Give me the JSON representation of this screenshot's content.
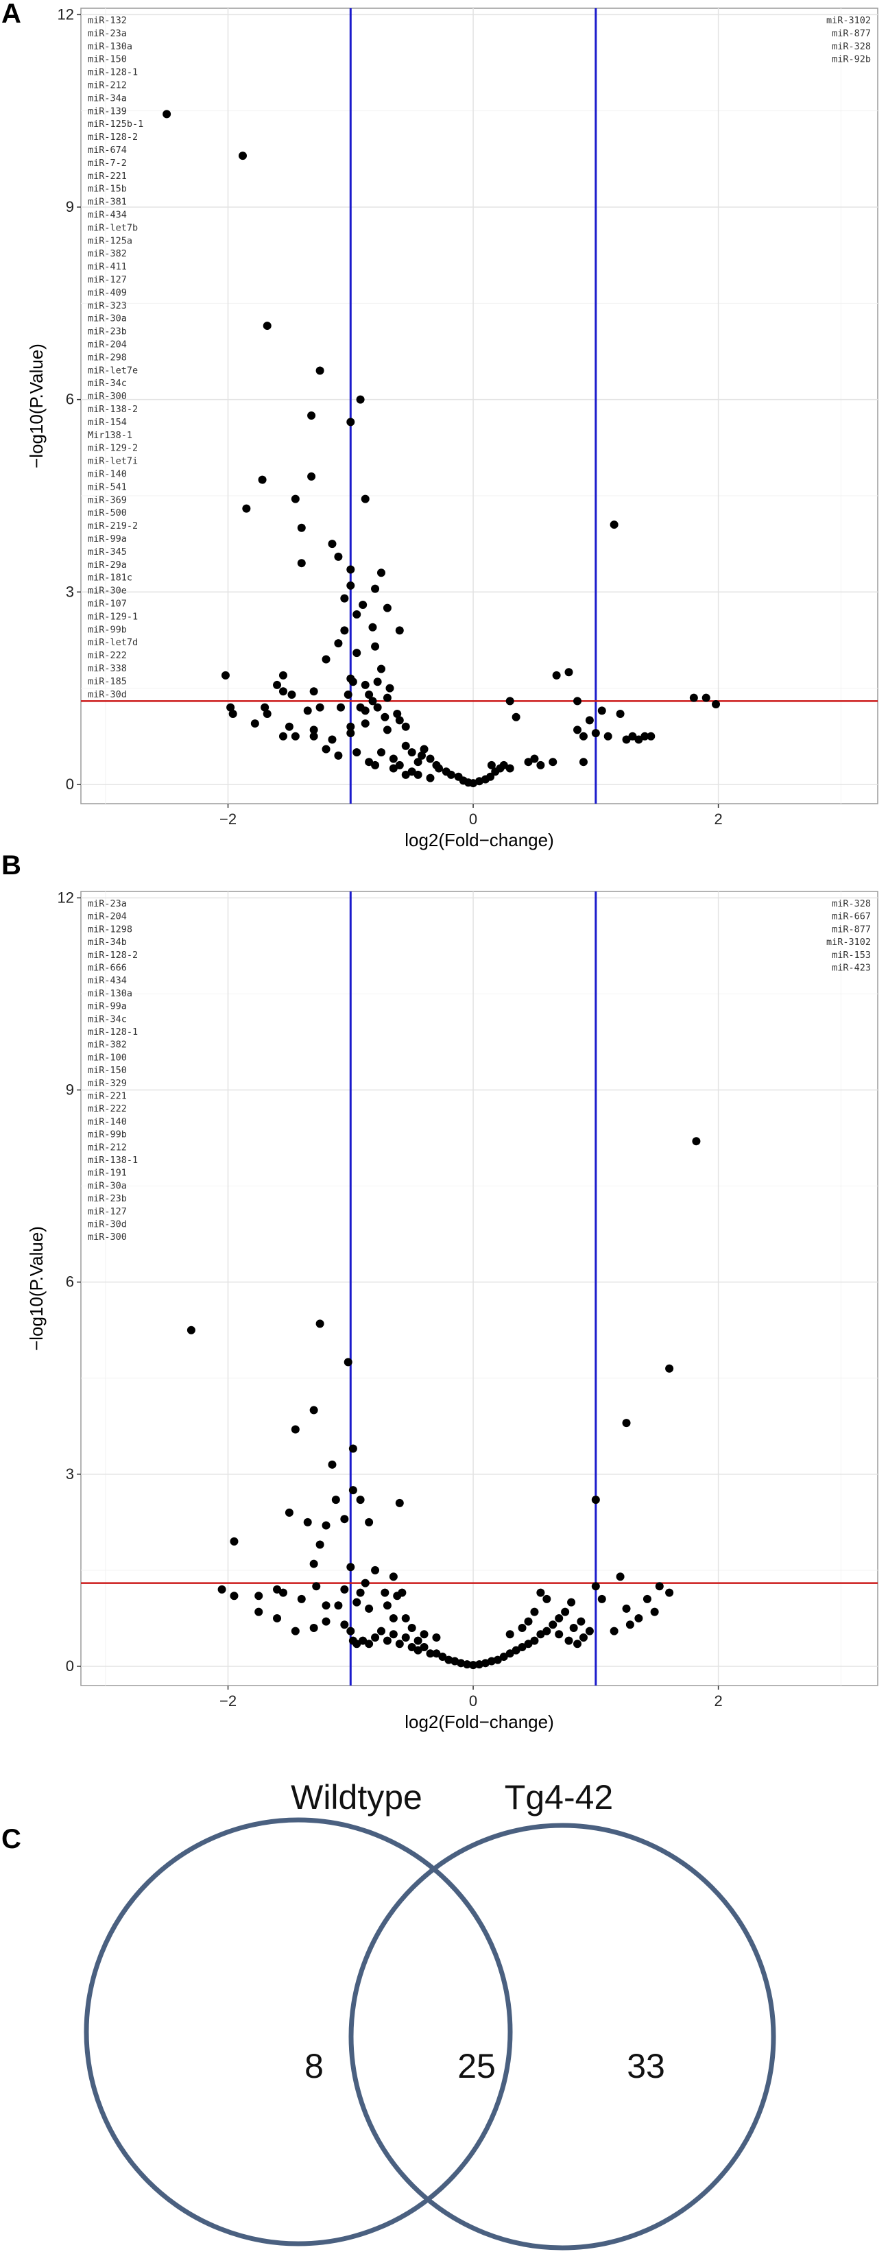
{
  "panels": {
    "a": "A",
    "b": "B",
    "c": "C"
  },
  "colors": {
    "panel_bg": "#ffffff",
    "panel_border": "#9a9a9a",
    "grid_major": "#e3e3e3",
    "grid_minor": "#f2f2f2",
    "fold_line": "#1a1acc",
    "pvalue_line": "#cc1a1a",
    "point": "#000000",
    "venn_circle": "#4a6080"
  },
  "chart_data": [
    {
      "type": "scatter",
      "panel": "A",
      "xlabel": "log2(Fold−change)",
      "ylabel": "−log10(P.Value)",
      "xlim": [
        -3.2,
        3.3
      ],
      "ylim": [
        -0.3,
        12.1
      ],
      "xticks": [
        -2,
        0,
        2
      ],
      "xtick_labels": [
        "−2",
        "0",
        "2"
      ],
      "yticks": [
        0,
        3,
        6,
        9,
        12
      ],
      "ytick_labels": [
        "0",
        "3",
        "6",
        "9",
        "12"
      ],
      "vlines": [
        -1,
        1
      ],
      "hline": 1.3,
      "down_mirs": [
        "miR-132",
        "miR-23a",
        "miR-130a",
        "miR-150",
        "miR-128-1",
        "miR-212",
        "miR-34a",
        "miR-139",
        "miR-125b-1",
        "miR-128-2",
        "miR-674",
        "miR-7-2",
        "miR-221",
        "miR-15b",
        "miR-381",
        "miR-434",
        "miR-let7b",
        "miR-125a",
        "miR-382",
        "miR-411",
        "miR-127",
        "miR-409",
        "miR-323",
        "miR-30a",
        "miR-23b",
        "miR-204",
        "miR-298",
        "miR-let7e",
        "miR-34c",
        "miR-300",
        "miR-138-2",
        "miR-154",
        "Mir138-1",
        "miR-129-2",
        "miR-let7i",
        "miR-140",
        "miR-541",
        "miR-369",
        "miR-500",
        "miR-219-2",
        "miR-99a",
        "miR-345",
        "miR-29a",
        "miR-181c",
        "miR-30e",
        "miR-107",
        "miR-129-1",
        "miR-99b",
        "miR-let7d",
        "miR-222",
        "miR-338",
        "miR-185",
        "miR-30d"
      ],
      "up_mirs": [
        "miR-3102",
        "miR-877",
        "miR-328",
        "miR-92b"
      ],
      "points": [
        [
          -2.5,
          10.45
        ],
        [
          -1.88,
          9.8
        ],
        [
          -1.68,
          7.15
        ],
        [
          -1.25,
          6.45
        ],
        [
          -0.92,
          6.0
        ],
        [
          -1.32,
          5.75
        ],
        [
          -1.0,
          5.65
        ],
        [
          -1.72,
          4.75
        ],
        [
          -1.32,
          4.8
        ],
        [
          -1.85,
          4.3
        ],
        [
          -1.45,
          4.45
        ],
        [
          -0.88,
          4.45
        ],
        [
          -1.4,
          4.0
        ],
        [
          -1.15,
          3.75
        ],
        [
          -1.1,
          3.55
        ],
        [
          -1.4,
          3.45
        ],
        [
          -1.0,
          3.35
        ],
        [
          -0.75,
          3.3
        ],
        [
          -1.0,
          3.1
        ],
        [
          -0.8,
          3.05
        ],
        [
          -1.05,
          2.9
        ],
        [
          -0.9,
          2.8
        ],
        [
          -0.7,
          2.75
        ],
        [
          -0.95,
          2.65
        ],
        [
          -1.05,
          2.4
        ],
        [
          -0.82,
          2.45
        ],
        [
          -0.6,
          2.4
        ],
        [
          -1.1,
          2.2
        ],
        [
          -0.8,
          2.15
        ],
        [
          -0.95,
          2.05
        ],
        [
          -1.2,
          1.95
        ],
        [
          -0.75,
          1.8
        ],
        [
          -1.55,
          1.7
        ],
        [
          -1.0,
          1.65
        ],
        [
          -0.88,
          1.55
        ],
        [
          -0.98,
          1.6
        ],
        [
          -0.78,
          1.6
        ],
        [
          -0.68,
          1.5
        ],
        [
          -1.6,
          1.55
        ],
        [
          -1.55,
          1.45
        ],
        [
          -2.02,
          1.7
        ],
        [
          -1.98,
          1.2
        ],
        [
          -1.96,
          1.1
        ],
        [
          -1.7,
          1.2
        ],
        [
          -1.68,
          1.1
        ],
        [
          -1.48,
          1.4
        ],
        [
          -1.3,
          1.45
        ],
        [
          -1.02,
          1.4
        ],
        [
          -0.85,
          1.4
        ],
        [
          -0.82,
          1.3
        ],
        [
          -0.7,
          1.35
        ],
        [
          -1.25,
          1.2
        ],
        [
          -1.35,
          1.15
        ],
        [
          -1.08,
          1.2
        ],
        [
          -0.92,
          1.2
        ],
        [
          -0.78,
          1.2
        ],
        [
          -0.88,
          1.15
        ],
        [
          -0.62,
          1.1
        ],
        [
          -0.72,
          1.05
        ],
        [
          -0.6,
          1.0
        ],
        [
          -1.78,
          0.95
        ],
        [
          -1.5,
          0.9
        ],
        [
          -1.3,
          0.85
        ],
        [
          -1.45,
          0.75
        ],
        [
          -1.3,
          0.75
        ],
        [
          -1.0,
          0.9
        ],
        [
          -0.88,
          0.95
        ],
        [
          -0.7,
          0.85
        ],
        [
          -0.55,
          0.9
        ],
        [
          -1.0,
          0.8
        ],
        [
          -1.15,
          0.7
        ],
        [
          -1.2,
          0.55
        ],
        [
          -1.1,
          0.45
        ],
        [
          -0.95,
          0.5
        ],
        [
          -0.85,
          0.35
        ],
        [
          -0.75,
          0.5
        ],
        [
          -0.65,
          0.4
        ],
        [
          -0.55,
          0.6
        ],
        [
          -0.5,
          0.5
        ],
        [
          -0.45,
          0.35
        ],
        [
          -0.4,
          0.55
        ],
        [
          -0.35,
          0.4
        ],
        [
          -0.3,
          0.3
        ],
        [
          -0.28,
          0.25
        ],
        [
          -0.22,
          0.2
        ],
        [
          -0.18,
          0.15
        ],
        [
          -0.12,
          0.12
        ],
        [
          -0.08,
          0.06
        ],
        [
          -0.04,
          0.03
        ],
        [
          0.0,
          0.02
        ],
        [
          0.05,
          0.05
        ],
        [
          0.1,
          0.08
        ],
        [
          0.14,
          0.12
        ],
        [
          0.18,
          0.2
        ],
        [
          0.22,
          0.25
        ],
        [
          0.25,
          0.3
        ],
        [
          0.15,
          0.3
        ],
        [
          -0.5,
          0.2
        ],
        [
          -0.6,
          0.3
        ],
        [
          -0.42,
          0.45
        ],
        [
          0.3,
          0.25
        ],
        [
          0.3,
          1.3
        ],
        [
          0.35,
          1.05
        ],
        [
          0.45,
          0.35
        ],
        [
          0.5,
          0.4
        ],
        [
          0.55,
          0.3
        ],
        [
          0.65,
          0.35
        ],
        [
          0.68,
          1.7
        ],
        [
          0.78,
          1.75
        ],
        [
          0.85,
          0.85
        ],
        [
          0.9,
          0.35
        ],
        [
          0.85,
          1.3
        ],
        [
          0.95,
          1.0
        ],
        [
          0.9,
          0.75
        ],
        [
          1.05,
          1.15
        ],
        [
          1.0,
          0.8
        ],
        [
          1.1,
          0.75
        ],
        [
          1.15,
          4.05
        ],
        [
          1.25,
          0.7
        ],
        [
          1.3,
          0.75
        ],
        [
          1.35,
          0.7
        ],
        [
          1.4,
          0.75
        ],
        [
          1.45,
          0.75
        ],
        [
          1.2,
          1.1
        ],
        [
          1.8,
          1.35
        ],
        [
          1.9,
          1.35
        ],
        [
          1.98,
          1.25
        ],
        [
          -0.55,
          0.15
        ],
        [
          -0.45,
          0.15
        ],
        [
          -0.35,
          0.1
        ],
        [
          -0.65,
          0.25
        ],
        [
          -0.8,
          0.3
        ],
        [
          -1.55,
          0.75
        ]
      ]
    },
    {
      "type": "scatter",
      "panel": "B",
      "xlabel": "log2(Fold−change)",
      "ylabel": "−log10(P.Value)",
      "xlim": [
        -3.2,
        3.3
      ],
      "ylim": [
        -0.3,
        12.1
      ],
      "xticks": [
        -2,
        0,
        2
      ],
      "xtick_labels": [
        "−2",
        "0",
        "2"
      ],
      "yticks": [
        0,
        3,
        6,
        9,
        12
      ],
      "ytick_labels": [
        "0",
        "3",
        "6",
        "9",
        "12"
      ],
      "vlines": [
        -1,
        1
      ],
      "hline": 1.3,
      "down_mirs": [
        "miR-23a",
        "miR-204",
        "miR-1298",
        "miR-34b",
        "miR-128-2",
        "miR-666",
        "miR-434",
        "miR-130a",
        "miR-99a",
        "miR-34c",
        "miR-128-1",
        "miR-382",
        "miR-100",
        "miR-150",
        "miR-329",
        "miR-221",
        "miR-222",
        "miR-140",
        "miR-99b",
        "miR-212",
        "miR-138-1",
        "miR-191",
        "miR-30a",
        "miR-23b",
        "miR-127",
        "miR-30d",
        "miR-300"
      ],
      "up_mirs": [
        "miR-328",
        "miR-667",
        "miR-877",
        "miR-3102",
        "miR-153",
        "miR-423"
      ],
      "points": [
        [
          -2.3,
          5.25
        ],
        [
          -1.25,
          5.35
        ],
        [
          -1.02,
          4.75
        ],
        [
          -1.3,
          4.0
        ],
        [
          -1.45,
          3.7
        ],
        [
          -0.98,
          3.4
        ],
        [
          -1.15,
          3.15
        ],
        [
          -0.98,
          2.75
        ],
        [
          -1.12,
          2.6
        ],
        [
          -0.92,
          2.6
        ],
        [
          -0.6,
          2.55
        ],
        [
          -1.5,
          2.4
        ],
        [
          -1.05,
          2.3
        ],
        [
          -1.2,
          2.2
        ],
        [
          -0.85,
          2.25
        ],
        [
          -1.35,
          2.25
        ],
        [
          -1.25,
          1.9
        ],
        [
          -1.95,
          1.95
        ],
        [
          -1.3,
          1.6
        ],
        [
          -1.0,
          1.55
        ],
        [
          -0.8,
          1.5
        ],
        [
          -0.65,
          1.4
        ],
        [
          -0.88,
          1.3
        ],
        [
          -1.28,
          1.25
        ],
        [
          -1.05,
          1.2
        ],
        [
          -0.92,
          1.15
        ],
        [
          -0.72,
          1.15
        ],
        [
          -0.62,
          1.1
        ],
        [
          -0.58,
          1.15
        ],
        [
          -2.05,
          1.2
        ],
        [
          -1.95,
          1.1
        ],
        [
          -1.75,
          1.1
        ],
        [
          -1.6,
          1.2
        ],
        [
          -1.55,
          1.15
        ],
        [
          -1.4,
          1.05
        ],
        [
          -1.2,
          0.95
        ],
        [
          -1.1,
          0.95
        ],
        [
          -0.95,
          1.0
        ],
        [
          -0.85,
          0.9
        ],
        [
          -0.7,
          0.95
        ],
        [
          -1.75,
          0.85
        ],
        [
          -1.6,
          0.75
        ],
        [
          -1.45,
          0.55
        ],
        [
          -1.3,
          0.6
        ],
        [
          -1.2,
          0.7
        ],
        [
          -1.05,
          0.65
        ],
        [
          -1.0,
          0.55
        ],
        [
          -0.98,
          0.4
        ],
        [
          -0.95,
          0.35
        ],
        [
          -0.9,
          0.4
        ],
        [
          -0.85,
          0.35
        ],
        [
          -0.8,
          0.45
        ],
        [
          -0.75,
          0.55
        ],
        [
          -0.7,
          0.4
        ],
        [
          -0.65,
          0.5
        ],
        [
          -0.6,
          0.35
        ],
        [
          -0.55,
          0.45
        ],
        [
          -0.5,
          0.3
        ],
        [
          -0.45,
          0.25
        ],
        [
          -0.4,
          0.3
        ],
        [
          -0.35,
          0.2
        ],
        [
          -0.3,
          0.2
        ],
        [
          -0.25,
          0.15
        ],
        [
          -0.2,
          0.1
        ],
        [
          -0.15,
          0.08
        ],
        [
          -0.1,
          0.05
        ],
        [
          -0.05,
          0.03
        ],
        [
          0.0,
          0.02
        ],
        [
          0.05,
          0.03
        ],
        [
          0.1,
          0.05
        ],
        [
          0.15,
          0.08
        ],
        [
          0.2,
          0.1
        ],
        [
          0.25,
          0.15
        ],
        [
          0.3,
          0.2
        ],
        [
          0.35,
          0.25
        ],
        [
          0.4,
          0.3
        ],
        [
          0.45,
          0.35
        ],
        [
          0.5,
          0.4
        ],
        [
          0.55,
          0.5
        ],
        [
          0.6,
          0.55
        ],
        [
          0.65,
          0.65
        ],
        [
          0.7,
          0.75
        ],
        [
          0.75,
          0.85
        ],
        [
          0.8,
          1.0
        ],
        [
          0.55,
          1.15
        ],
        [
          0.6,
          1.05
        ],
        [
          0.5,
          0.85
        ],
        [
          0.45,
          0.7
        ],
        [
          0.7,
          0.5
        ],
        [
          0.78,
          0.4
        ],
        [
          0.85,
          0.35
        ],
        [
          0.9,
          0.45
        ],
        [
          0.95,
          0.55
        ],
        [
          0.82,
          0.6
        ],
        [
          0.88,
          0.7
        ],
        [
          1.0,
          2.6
        ],
        [
          1.0,
          1.25
        ],
        [
          1.05,
          1.05
        ],
        [
          1.15,
          0.55
        ],
        [
          1.2,
          1.4
        ],
        [
          1.25,
          0.9
        ],
        [
          1.28,
          0.65
        ],
        [
          1.35,
          0.75
        ],
        [
          1.42,
          1.05
        ],
        [
          1.48,
          0.85
        ],
        [
          1.52,
          1.25
        ],
        [
          1.6,
          1.15
        ],
        [
          1.25,
          3.8
        ],
        [
          1.6,
          4.65
        ],
        [
          1.82,
          8.2
        ],
        [
          -0.5,
          0.6
        ],
        [
          -0.4,
          0.5
        ],
        [
          -0.3,
          0.45
        ],
        [
          -0.55,
          0.75
        ],
        [
          0.3,
          0.5
        ],
        [
          0.4,
          0.6
        ],
        [
          -0.65,
          0.75
        ],
        [
          -0.45,
          0.4
        ]
      ]
    },
    {
      "type": "venn",
      "panel": "C",
      "sets": [
        "Wildtype",
        "Tg4-42"
      ],
      "only_first": "8",
      "both": "25",
      "only_second": "33"
    }
  ]
}
